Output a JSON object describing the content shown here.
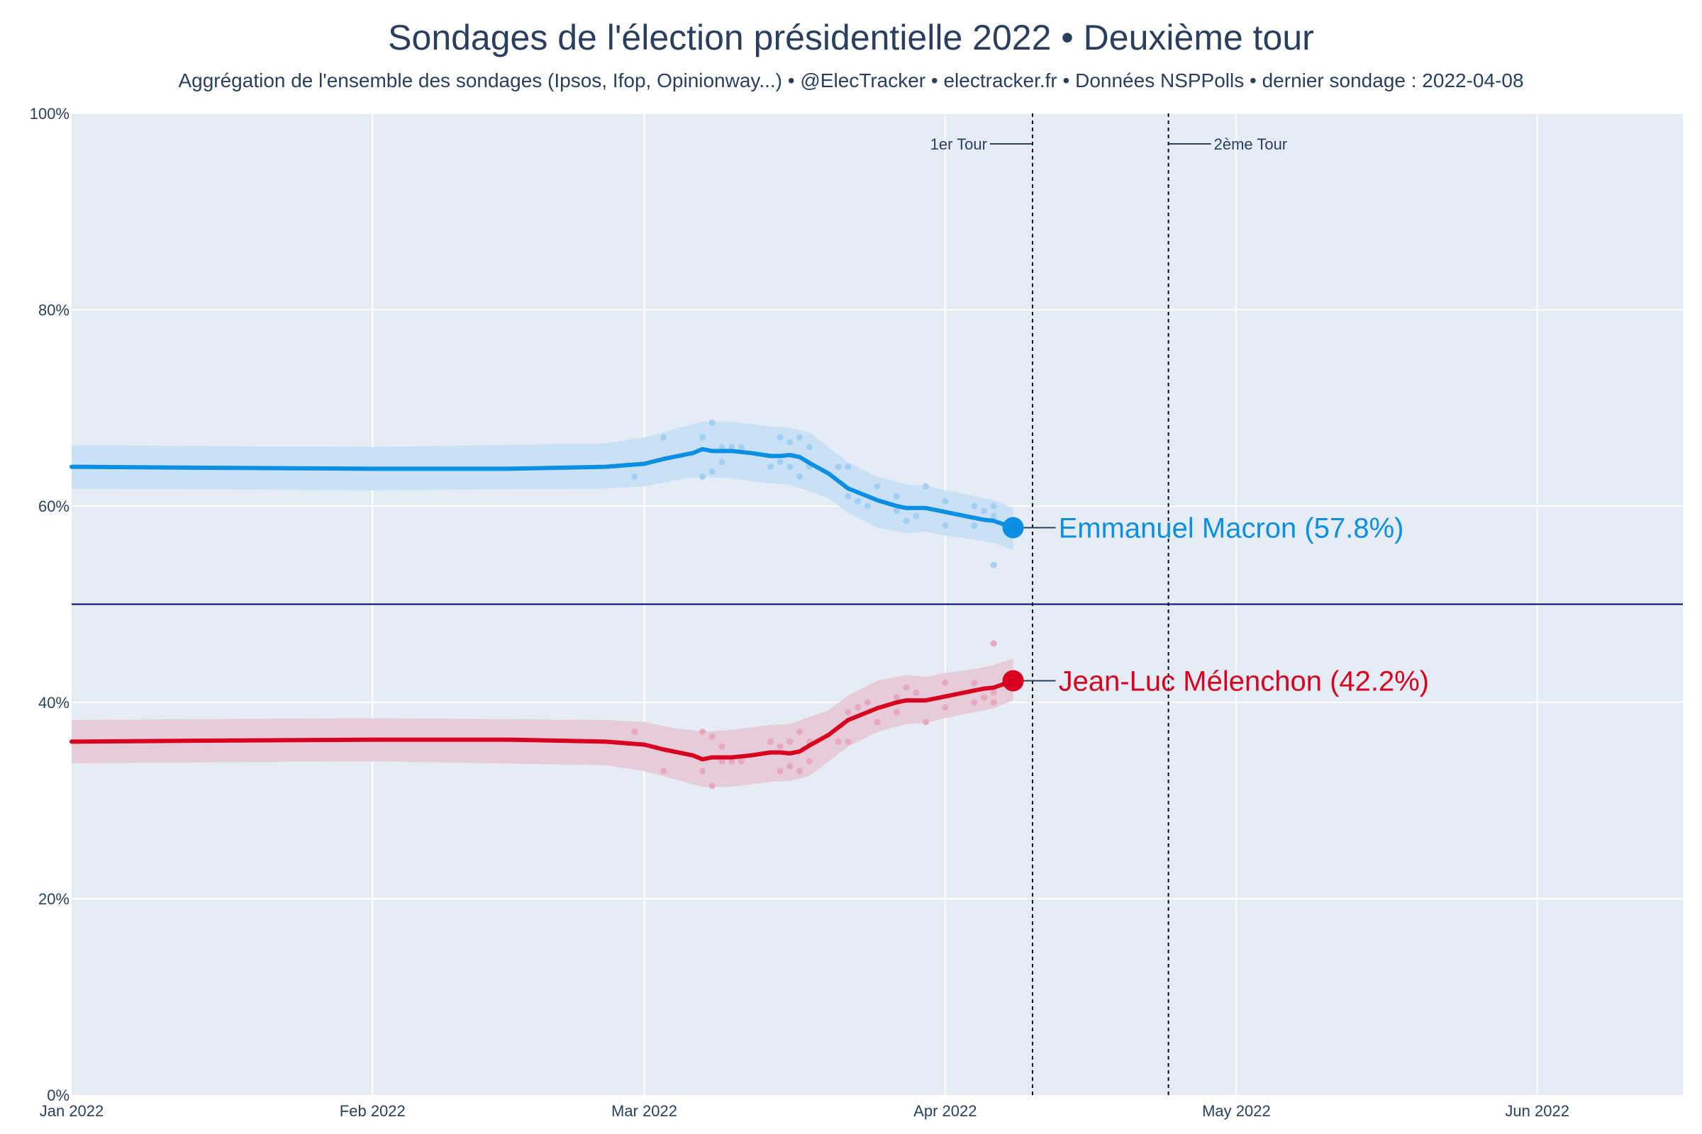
{
  "chart_data": {
    "type": "line",
    "title": "Sondages de l'élection présidentielle 2022 • Deuxième tour",
    "subtitle": "Aggrégation de l'ensemble des sondages (Ipsos, Ifop, Opinionway...) • @ElecTracker • electracker.fr • Données NSPPolls • dernier sondage : 2022-04-08",
    "xlabel": "",
    "ylabel": "",
    "x_range": [
      "2022-01-01",
      "2022-06-16"
    ],
    "y_range": [
      0,
      100
    ],
    "x_ticks": [
      {
        "date": "2022-01-01",
        "label": "Jan 2022"
      },
      {
        "date": "2022-02-01",
        "label": "Feb 2022"
      },
      {
        "date": "2022-03-01",
        "label": "Mar 2022"
      },
      {
        "date": "2022-04-01",
        "label": "Apr 2022"
      },
      {
        "date": "2022-05-01",
        "label": "May 2022"
      },
      {
        "date": "2022-06-01",
        "label": "Jun 2022"
      }
    ],
    "y_ticks": [
      {
        "value": 0,
        "label": "0%"
      },
      {
        "value": 20,
        "label": "20%"
      },
      {
        "value": 40,
        "label": "40%"
      },
      {
        "value": 60,
        "label": "60%"
      },
      {
        "value": 80,
        "label": "80%"
      },
      {
        "value": 100,
        "label": "100%"
      }
    ],
    "grid": true,
    "reference_line": 50,
    "vlines": [
      {
        "date": "2022-04-10",
        "label": "1er Tour",
        "side": "left"
      },
      {
        "date": "2022-04-24",
        "label": "2ème Tour",
        "side": "right"
      }
    ],
    "series": [
      {
        "name": "Emmanuel Macron",
        "end_label": "Emmanuel Macron (57.8%)",
        "color": "#0a8fe3",
        "band_color": "#c5dff5",
        "dot_color": "#a3d0f2",
        "line": [
          [
            "2022-01-01",
            64.0
          ],
          [
            "2022-01-15",
            63.9
          ],
          [
            "2022-02-01",
            63.8
          ],
          [
            "2022-02-15",
            63.8
          ],
          [
            "2022-02-25",
            64.0
          ],
          [
            "2022-03-01",
            64.3
          ],
          [
            "2022-03-03",
            64.8
          ],
          [
            "2022-03-06",
            65.4
          ],
          [
            "2022-03-07",
            65.8
          ],
          [
            "2022-03-08",
            65.6
          ],
          [
            "2022-03-10",
            65.6
          ],
          [
            "2022-03-12",
            65.4
          ],
          [
            "2022-03-14",
            65.1
          ],
          [
            "2022-03-15",
            65.1
          ],
          [
            "2022-03-16",
            65.2
          ],
          [
            "2022-03-17",
            65.0
          ],
          [
            "2022-03-18",
            64.4
          ],
          [
            "2022-03-20",
            63.3
          ],
          [
            "2022-03-22",
            61.8
          ],
          [
            "2022-03-23",
            61.4
          ],
          [
            "2022-03-25",
            60.6
          ],
          [
            "2022-03-27",
            60.0
          ],
          [
            "2022-03-28",
            59.8
          ],
          [
            "2022-03-30",
            59.8
          ],
          [
            "2022-04-01",
            59.4
          ],
          [
            "2022-04-03",
            59.0
          ],
          [
            "2022-04-05",
            58.6
          ],
          [
            "2022-04-06",
            58.5
          ],
          [
            "2022-04-08",
            57.8
          ]
        ],
        "band_upper": [
          [
            "2022-01-01",
            66.2
          ],
          [
            "2022-02-01",
            66.0
          ],
          [
            "2022-02-25",
            66.4
          ],
          [
            "2022-03-01",
            67.0
          ],
          [
            "2022-03-04",
            67.8
          ],
          [
            "2022-03-07",
            68.6
          ],
          [
            "2022-03-10",
            68.6
          ],
          [
            "2022-03-14",
            68.1
          ],
          [
            "2022-03-16",
            68.0
          ],
          [
            "2022-03-18",
            67.5
          ],
          [
            "2022-03-20",
            66.0
          ],
          [
            "2022-03-22",
            64.5
          ],
          [
            "2022-03-25",
            63.0
          ],
          [
            "2022-03-28",
            62.2
          ],
          [
            "2022-03-30",
            62.1
          ],
          [
            "2022-04-01",
            61.6
          ],
          [
            "2022-04-04",
            61.0
          ],
          [
            "2022-04-06",
            60.6
          ],
          [
            "2022-04-08",
            59.8
          ]
        ],
        "band_lower": [
          [
            "2022-01-01",
            61.8
          ],
          [
            "2022-02-01",
            61.6
          ],
          [
            "2022-02-25",
            61.8
          ],
          [
            "2022-03-01",
            62.0
          ],
          [
            "2022-03-04",
            62.6
          ],
          [
            "2022-03-07",
            63.0
          ],
          [
            "2022-03-10",
            62.8
          ],
          [
            "2022-03-14",
            62.3
          ],
          [
            "2022-03-16",
            62.2
          ],
          [
            "2022-03-18",
            61.5
          ],
          [
            "2022-03-20",
            60.8
          ],
          [
            "2022-03-22",
            59.3
          ],
          [
            "2022-03-25",
            57.8
          ],
          [
            "2022-03-28",
            57.2
          ],
          [
            "2022-03-30",
            57.4
          ],
          [
            "2022-04-01",
            57.0
          ],
          [
            "2022-04-04",
            56.6
          ],
          [
            "2022-04-06",
            56.2
          ],
          [
            "2022-04-08",
            55.5
          ]
        ],
        "polls": [
          [
            "2022-02-28",
            63.0
          ],
          [
            "2022-03-03",
            67.0
          ],
          [
            "2022-03-07",
            67.0
          ],
          [
            "2022-03-07",
            63.0
          ],
          [
            "2022-03-08",
            68.5
          ],
          [
            "2022-03-08",
            63.5
          ],
          [
            "2022-03-09",
            66.0
          ],
          [
            "2022-03-09",
            64.5
          ],
          [
            "2022-03-10",
            66.0
          ],
          [
            "2022-03-11",
            66.0
          ],
          [
            "2022-03-14",
            64.0
          ],
          [
            "2022-03-15",
            67.0
          ],
          [
            "2022-03-15",
            64.5
          ],
          [
            "2022-03-16",
            66.5
          ],
          [
            "2022-03-16",
            64.0
          ],
          [
            "2022-03-17",
            67.0
          ],
          [
            "2022-03-17",
            63.0
          ],
          [
            "2022-03-18",
            66.0
          ],
          [
            "2022-03-18",
            64.0
          ],
          [
            "2022-03-21",
            64.0
          ],
          [
            "2022-03-22",
            64.0
          ],
          [
            "2022-03-22",
            61.0
          ],
          [
            "2022-03-23",
            60.5
          ],
          [
            "2022-03-24",
            60.0
          ],
          [
            "2022-03-25",
            62.0
          ],
          [
            "2022-03-27",
            61.0
          ],
          [
            "2022-03-27",
            59.5
          ],
          [
            "2022-03-28",
            58.5
          ],
          [
            "2022-03-29",
            59.0
          ],
          [
            "2022-03-30",
            62.0
          ],
          [
            "2022-04-01",
            60.5
          ],
          [
            "2022-04-01",
            58.0
          ],
          [
            "2022-04-04",
            60.0
          ],
          [
            "2022-04-04",
            58.0
          ],
          [
            "2022-04-05",
            59.5
          ],
          [
            "2022-04-06",
            60.0
          ],
          [
            "2022-04-06",
            59.0
          ],
          [
            "2022-04-06",
            54.0
          ]
        ]
      },
      {
        "name": "Jean-Luc Mélenchon",
        "end_label": "Jean-Luc Mélenchon (42.2%)",
        "color": "#d9001f",
        "band_color": "#e6c9d5",
        "dot_color": "#e8a9bd",
        "line": [
          [
            "2022-01-01",
            36.0
          ],
          [
            "2022-01-15",
            36.1
          ],
          [
            "2022-02-01",
            36.2
          ],
          [
            "2022-02-15",
            36.2
          ],
          [
            "2022-02-25",
            36.0
          ],
          [
            "2022-03-01",
            35.7
          ],
          [
            "2022-03-03",
            35.2
          ],
          [
            "2022-03-06",
            34.6
          ],
          [
            "2022-03-07",
            34.2
          ],
          [
            "2022-03-08",
            34.4
          ],
          [
            "2022-03-10",
            34.4
          ],
          [
            "2022-03-12",
            34.6
          ],
          [
            "2022-03-14",
            34.9
          ],
          [
            "2022-03-15",
            34.9
          ],
          [
            "2022-03-16",
            34.8
          ],
          [
            "2022-03-17",
            35.0
          ],
          [
            "2022-03-18",
            35.6
          ],
          [
            "2022-03-20",
            36.7
          ],
          [
            "2022-03-22",
            38.2
          ],
          [
            "2022-03-23",
            38.6
          ],
          [
            "2022-03-25",
            39.4
          ],
          [
            "2022-03-27",
            40.0
          ],
          [
            "2022-03-28",
            40.2
          ],
          [
            "2022-03-30",
            40.2
          ],
          [
            "2022-04-01",
            40.6
          ],
          [
            "2022-04-03",
            41.0
          ],
          [
            "2022-04-05",
            41.4
          ],
          [
            "2022-04-06",
            41.5
          ],
          [
            "2022-04-08",
            42.2
          ]
        ],
        "band_upper": [
          [
            "2022-01-01",
            38.2
          ],
          [
            "2022-02-01",
            38.4
          ],
          [
            "2022-02-25",
            38.2
          ],
          [
            "2022-03-01",
            38.0
          ],
          [
            "2022-03-04",
            37.4
          ],
          [
            "2022-03-07",
            37.0
          ],
          [
            "2022-03-10",
            37.2
          ],
          [
            "2022-03-14",
            37.7
          ],
          [
            "2022-03-16",
            37.8
          ],
          [
            "2022-03-18",
            38.5
          ],
          [
            "2022-03-20",
            39.2
          ],
          [
            "2022-03-22",
            40.7
          ],
          [
            "2022-03-25",
            42.2
          ],
          [
            "2022-03-28",
            42.8
          ],
          [
            "2022-03-30",
            42.6
          ],
          [
            "2022-04-01",
            43.0
          ],
          [
            "2022-04-04",
            43.4
          ],
          [
            "2022-04-06",
            43.8
          ],
          [
            "2022-04-08",
            44.5
          ]
        ],
        "band_lower": [
          [
            "2022-01-01",
            33.8
          ],
          [
            "2022-02-01",
            34.0
          ],
          [
            "2022-02-25",
            33.6
          ],
          [
            "2022-03-01",
            33.0
          ],
          [
            "2022-03-04",
            32.2
          ],
          [
            "2022-03-07",
            31.4
          ],
          [
            "2022-03-10",
            31.4
          ],
          [
            "2022-03-14",
            31.9
          ],
          [
            "2022-03-16",
            32.0
          ],
          [
            "2022-03-18",
            32.5
          ],
          [
            "2022-03-20",
            34.0
          ],
          [
            "2022-03-22",
            35.5
          ],
          [
            "2022-03-25",
            37.0
          ],
          [
            "2022-03-28",
            37.8
          ],
          [
            "2022-03-30",
            37.9
          ],
          [
            "2022-04-01",
            38.4
          ],
          [
            "2022-04-04",
            39.0
          ],
          [
            "2022-04-06",
            39.4
          ],
          [
            "2022-04-08",
            40.2
          ]
        ],
        "polls": [
          [
            "2022-02-28",
            37.0
          ],
          [
            "2022-03-03",
            33.0
          ],
          [
            "2022-03-07",
            37.0
          ],
          [
            "2022-03-07",
            33.0
          ],
          [
            "2022-03-08",
            31.5
          ],
          [
            "2022-03-08",
            36.5
          ],
          [
            "2022-03-09",
            34.0
          ],
          [
            "2022-03-09",
            35.5
          ],
          [
            "2022-03-10",
            34.0
          ],
          [
            "2022-03-11",
            34.0
          ],
          [
            "2022-03-14",
            36.0
          ],
          [
            "2022-03-15",
            33.0
          ],
          [
            "2022-03-15",
            35.5
          ],
          [
            "2022-03-16",
            33.5
          ],
          [
            "2022-03-16",
            36.0
          ],
          [
            "2022-03-17",
            33.0
          ],
          [
            "2022-03-17",
            37.0
          ],
          [
            "2022-03-18",
            34.0
          ],
          [
            "2022-03-18",
            36.0
          ],
          [
            "2022-03-21",
            36.0
          ],
          [
            "2022-03-22",
            36.0
          ],
          [
            "2022-03-22",
            39.0
          ],
          [
            "2022-03-23",
            39.5
          ],
          [
            "2022-03-24",
            40.0
          ],
          [
            "2022-03-25",
            38.0
          ],
          [
            "2022-03-27",
            39.0
          ],
          [
            "2022-03-27",
            40.5
          ],
          [
            "2022-03-28",
            41.5
          ],
          [
            "2022-03-29",
            41.0
          ],
          [
            "2022-03-30",
            38.0
          ],
          [
            "2022-04-01",
            39.5
          ],
          [
            "2022-04-01",
            42.0
          ],
          [
            "2022-04-04",
            40.0
          ],
          [
            "2022-04-04",
            42.0
          ],
          [
            "2022-04-05",
            40.5
          ],
          [
            "2022-04-06",
            40.0
          ],
          [
            "2022-04-06",
            41.0
          ],
          [
            "2022-04-06",
            46.0
          ]
        ]
      }
    ]
  }
}
